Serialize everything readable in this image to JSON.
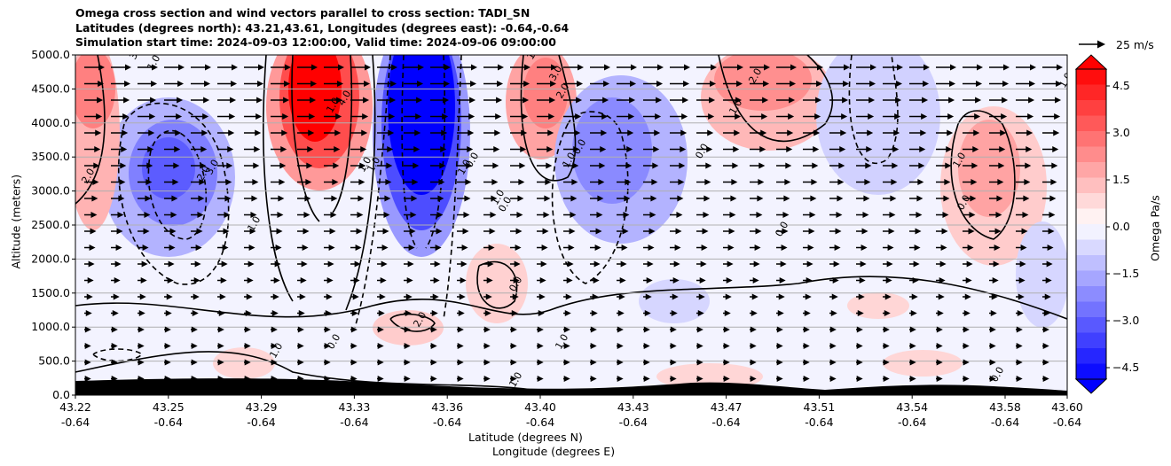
{
  "title_lines": [
    "Omega cross section and wind vectors parallel to cross section: TADI_SN",
    "Latitudes (degrees north): 43.21,43.61, Longitudes (degrees east): -0.64,-0.64",
    "Simulation start time: 2024-09-03 12:00:00, Valid time: 2024-09-06 09:00:00"
  ],
  "ylabel": "Altitude (meters)",
  "xlabel_1": "Latitude (degrees N)",
  "xlabel_2": "Longitude (degrees E)",
  "colorbar_label": "Omega Pa/s",
  "quiver_key": "25 m/s",
  "chart_data": {
    "type": "heatmap",
    "ylim": [
      0,
      5000
    ],
    "yticks": [
      "0.0",
      "500.0",
      "1000.0",
      "1500.0",
      "2000.0",
      "2500.0",
      "3000.0",
      "3500.0",
      "4000.0",
      "4500.0",
      "5000.0"
    ],
    "xticks_lat": [
      "43.22",
      "43.25",
      "43.29",
      "43.33",
      "43.36",
      "43.40",
      "43.43",
      "43.47",
      "43.51",
      "43.54",
      "43.58",
      "43.60"
    ],
    "xticks_lon": [
      "-0.64",
      "-0.64",
      "-0.64",
      "-0.64",
      "-0.64",
      "-0.64",
      "-0.64",
      "-0.64",
      "-0.64",
      "-0.64",
      "-0.64",
      "-0.64"
    ],
    "colorbar_range": [
      -5.0,
      5.0
    ],
    "colorbar_ticks": [
      "4.5",
      "3.0",
      "1.5",
      "0.0",
      "−1.5",
      "−3.0",
      "−4.5"
    ],
    "colormap": "bwr",
    "grid": "horizontal",
    "contour_labels": [
      "3.0",
      "1.0",
      "2.0",
      "4.0",
      "1.0",
      "2.0",
      "3.0",
      "1.0",
      "1.0",
      "1.0",
      "3.0",
      "2.0",
      "1.0",
      "0.0",
      "0.0",
      "0.0",
      "1.0",
      "2.0",
      "1.0",
      "0.0",
      "1.0",
      "1.0",
      "0.0",
      "1.0",
      "1.0",
      "2.0",
      "1.0",
      "0.0",
      "0.0",
      "0.0",
      "1.0",
      "1.0",
      "0.0"
    ],
    "wind_vectors": "parallel to cross section, mostly northward (left to right), stronger aloft",
    "terrain": "black filled terrain along bottom, approx 100-220 m"
  },
  "colors": {
    "red": "#ff0000",
    "blue": "#0000ff",
    "white": "#ffffff",
    "terrain": "#000000"
  }
}
